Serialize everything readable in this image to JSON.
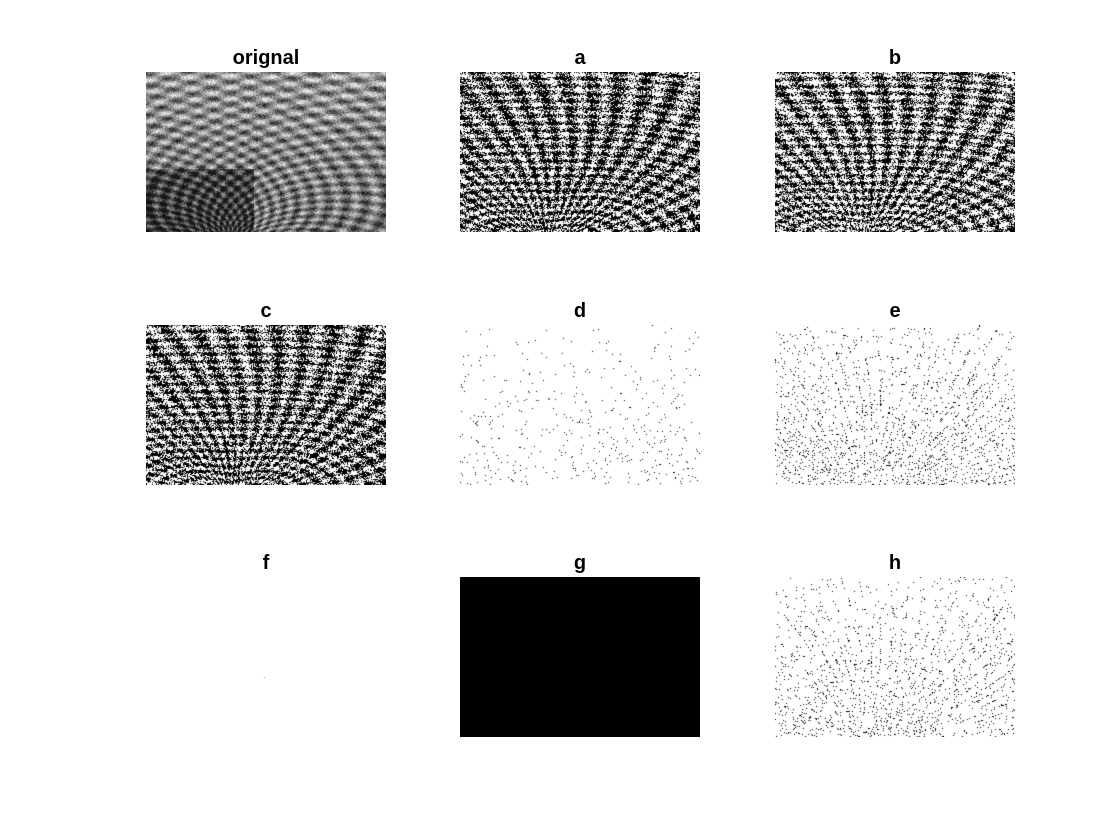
{
  "figure": {
    "panels": [
      {
        "key": "orignal",
        "title": "orignal",
        "pattern": "grayscale-photo",
        "density": 0.5
      },
      {
        "key": "a",
        "title": "a",
        "pattern": "binary-noise",
        "density": 0.55
      },
      {
        "key": "b",
        "title": "b",
        "pattern": "binary-noise",
        "density": 0.5
      },
      {
        "key": "c",
        "title": "c",
        "pattern": "binary-noise",
        "density": 0.55
      },
      {
        "key": "d",
        "title": "d",
        "pattern": "sparse-edges",
        "density": 0.03
      },
      {
        "key": "e",
        "title": "e",
        "pattern": "sparse-edges",
        "density": 0.12
      },
      {
        "key": "f",
        "title": "f",
        "pattern": "blank",
        "density": 0.0
      },
      {
        "key": "g",
        "title": "g",
        "pattern": "solid-black",
        "density": 1.0
      },
      {
        "key": "h",
        "title": "h",
        "pattern": "sparse-edges",
        "density": 0.1
      }
    ],
    "colors": {
      "background": "#ffffff",
      "ink": "#000000"
    }
  }
}
